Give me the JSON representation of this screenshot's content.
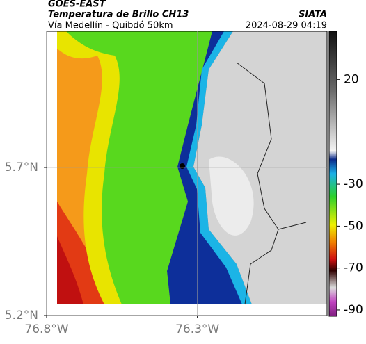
{
  "header": {
    "source": "GOES-EAST",
    "title": "Temperatura de Brillo CH13",
    "subtitle": "Vía Medellín - Quibdó 50km",
    "agency": "SIATA",
    "timestamp": "2024-08-29 04:19"
  },
  "map": {
    "xlim": [
      -76.8,
      -75.87
    ],
    "ylim": [
      5.2,
      6.16
    ],
    "xticks": [
      {
        "value": -76.8,
        "label": "76.8°W"
      },
      {
        "value": -76.3,
        "label": "76.3°W"
      }
    ],
    "yticks": [
      {
        "value": 5.2,
        "label": "5.2°N"
      },
      {
        "value": 5.7,
        "label": "5.7°N"
      }
    ],
    "grid": true
  },
  "colorbar": {
    "lim": [
      -93,
      43
    ],
    "ticks": [
      20,
      -30,
      -50,
      -70,
      -90
    ]
  }
}
